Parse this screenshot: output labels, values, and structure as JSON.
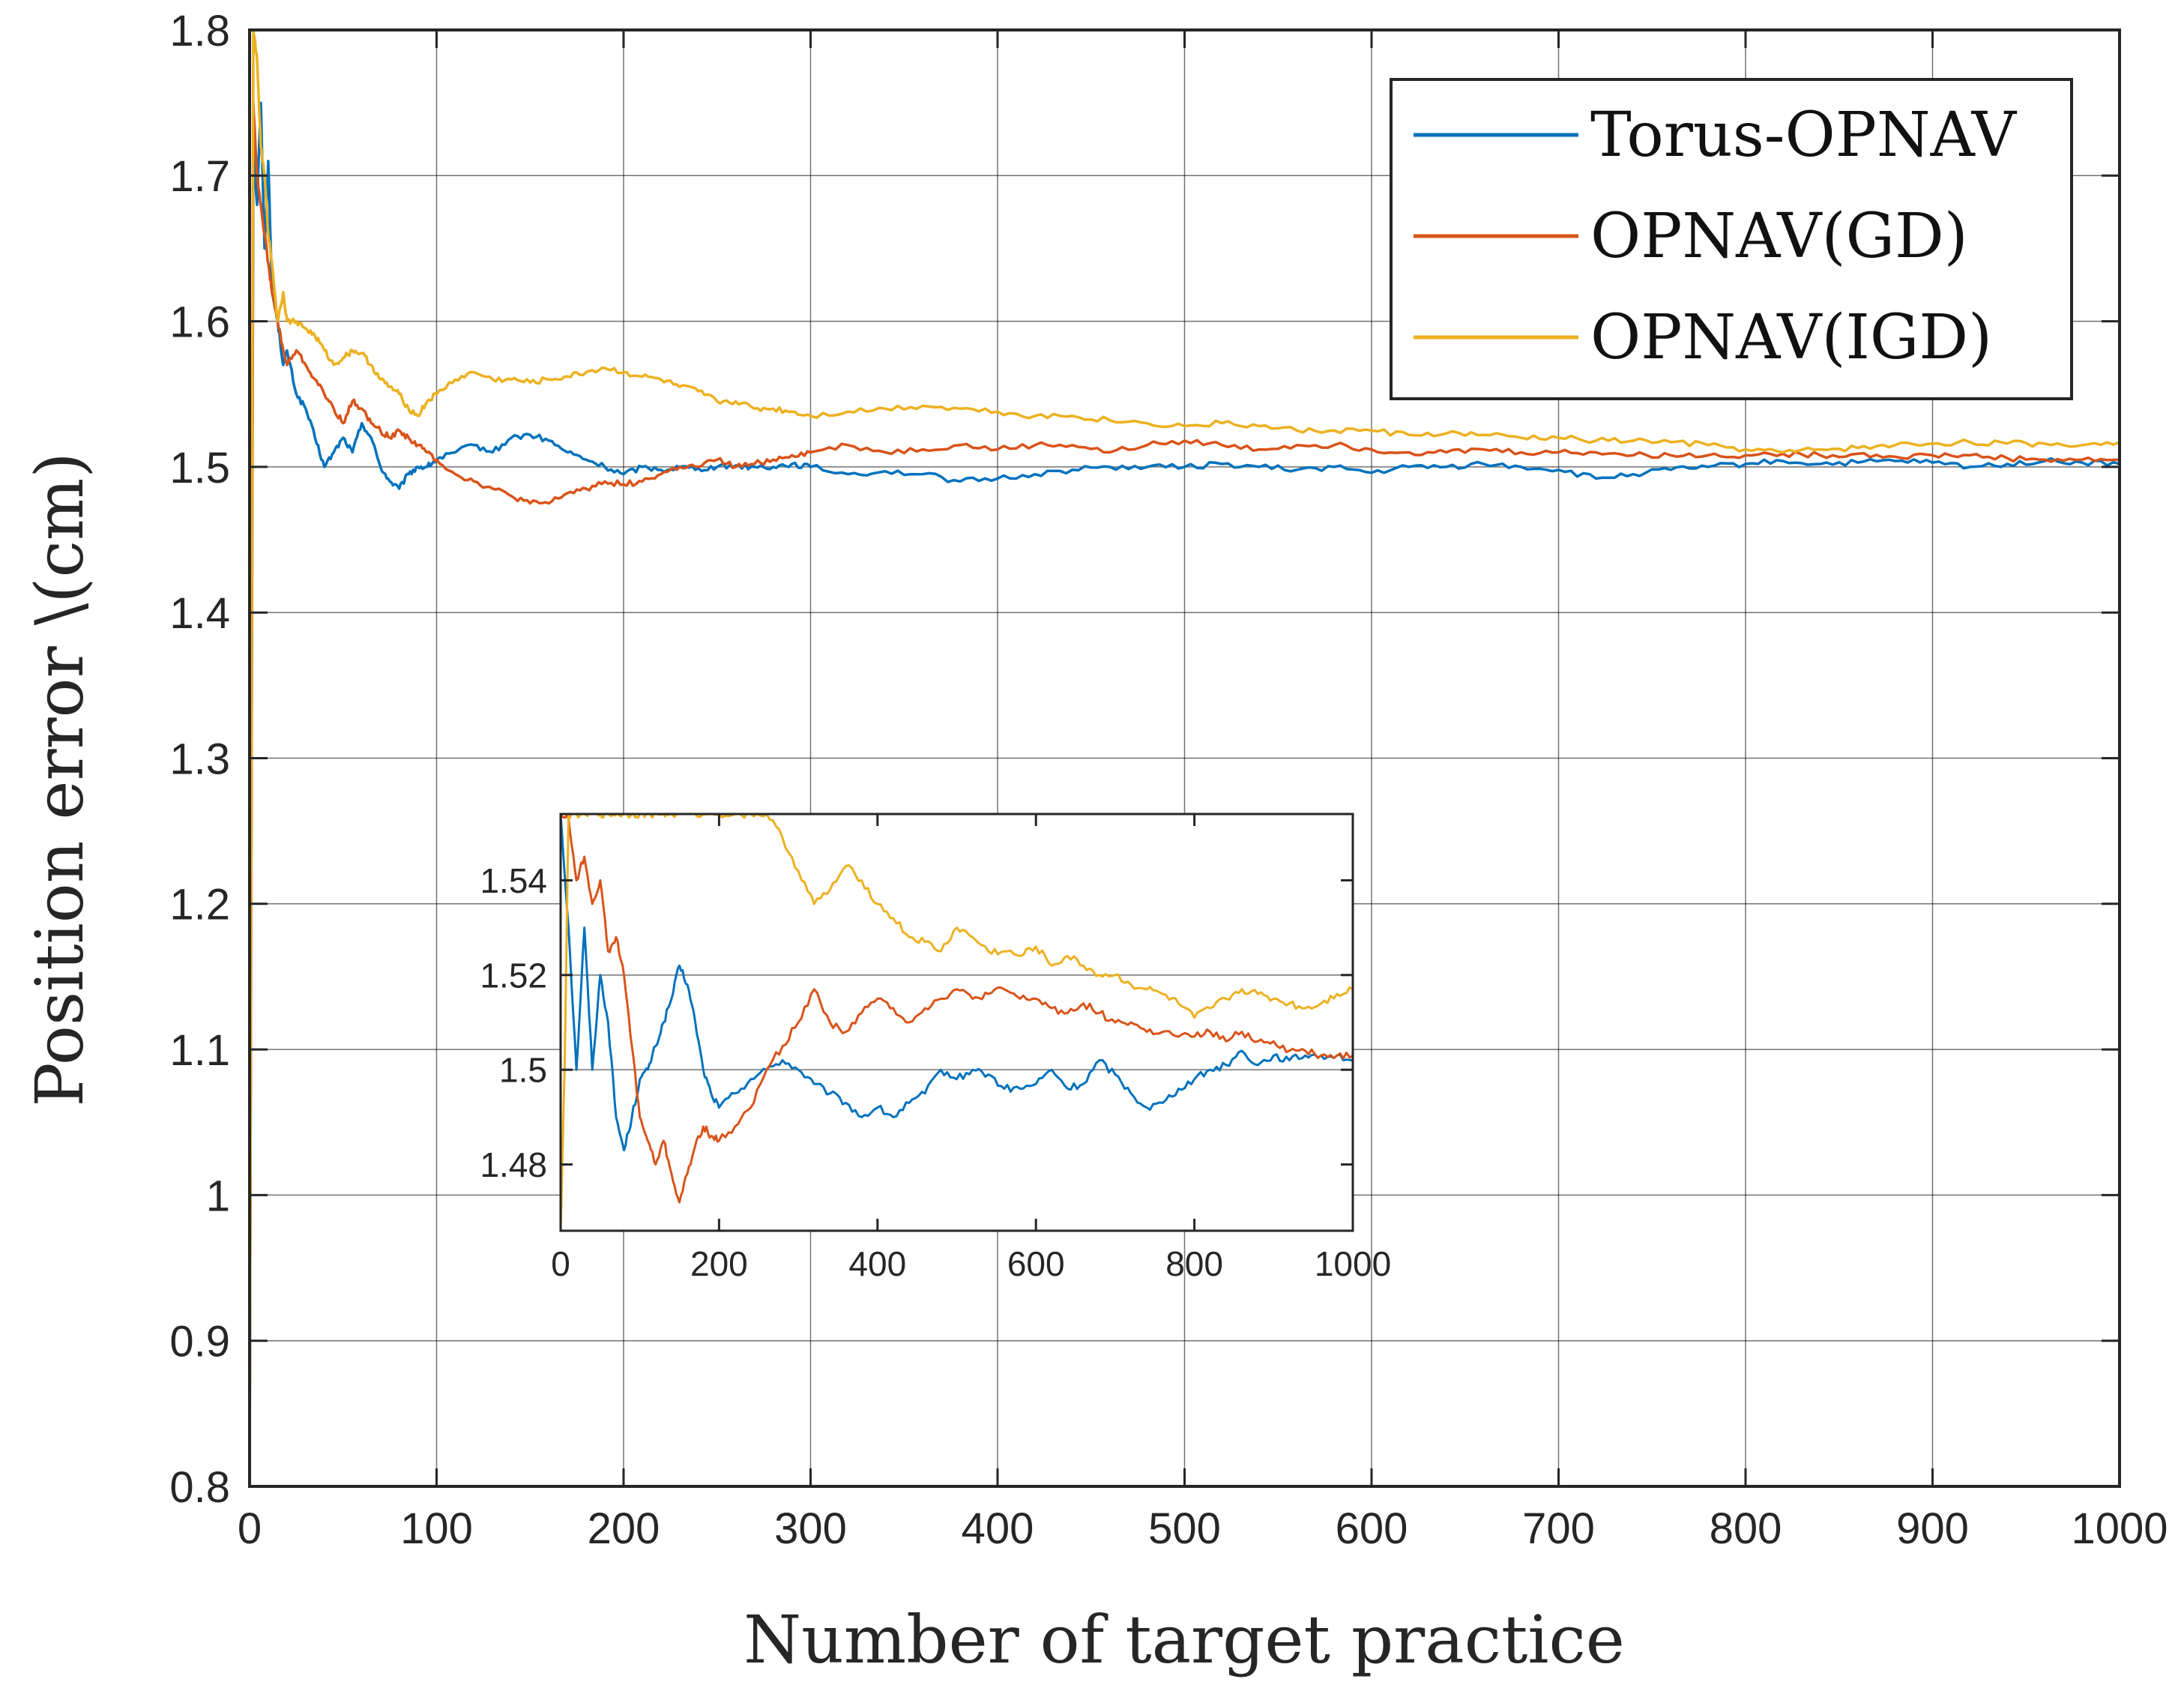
{
  "chart_data": [
    {
      "type": "line",
      "name": "main-chart",
      "xlabel": "Number of target practice",
      "ylabel": "Position error \\(cm)",
      "xlim": [
        0,
        1000
      ],
      "ylim": [
        0.8,
        1.8
      ],
      "xticks": [
        0,
        100,
        200,
        300,
        400,
        500,
        600,
        700,
        800,
        900,
        1000
      ],
      "xtick_labels": [
        "0",
        "100",
        "200",
        "300",
        "400",
        "500",
        "600",
        "700",
        "800",
        "900",
        "1000"
      ],
      "yticks": [
        0.8,
        0.9,
        1.0,
        1.1,
        1.2,
        1.3,
        1.4,
        1.5,
        1.6,
        1.7,
        1.8
      ],
      "ytick_labels": [
        "0.8",
        "0.9",
        "1",
        "1.1",
        "1.2",
        "1.3",
        "1.4",
        "1.5",
        "1.6",
        "1.7",
        "1.8"
      ],
      "legend_position": "top-right",
      "series": [
        {
          "name": "Torus-OPNAV",
          "color": "#0072BD",
          "x": [
            0,
            2,
            4,
            6,
            8,
            10,
            12,
            15,
            18,
            20,
            25,
            30,
            35,
            40,
            45,
            50,
            55,
            60,
            65,
            70,
            75,
            80,
            85,
            90,
            95,
            100,
            110,
            120,
            130,
            140,
            150,
            160,
            170,
            180,
            190,
            200,
            210,
            220,
            230,
            240,
            250,
            260,
            270,
            280,
            290,
            300,
            320,
            340,
            360,
            380,
            400,
            420,
            440,
            460,
            480,
            500,
            520,
            540,
            560,
            580,
            600,
            620,
            640,
            660,
            680,
            700,
            720,
            740,
            760,
            780,
            800,
            820,
            840,
            860,
            880,
            900,
            920,
            940,
            960,
            980,
            1000
          ],
          "y": [
            0.8,
            1.72,
            1.68,
            1.75,
            1.65,
            1.71,
            1.62,
            1.6,
            1.57,
            1.58,
            1.55,
            1.54,
            1.52,
            1.5,
            1.51,
            1.52,
            1.51,
            1.53,
            1.52,
            1.5,
            1.49,
            1.485,
            1.495,
            1.5,
            1.5,
            1.505,
            1.51,
            1.515,
            1.51,
            1.52,
            1.522,
            1.518,
            1.51,
            1.505,
            1.5,
            1.495,
            1.5,
            1.498,
            1.5,
            1.499,
            1.5,
            1.501,
            1.5,
            1.5,
            1.502,
            1.5,
            1.495,
            1.497,
            1.495,
            1.49,
            1.492,
            1.495,
            1.498,
            1.5,
            1.5,
            1.5,
            1.502,
            1.5,
            1.498,
            1.5,
            1.496,
            1.5,
            1.5,
            1.502,
            1.5,
            1.498,
            1.492,
            1.495,
            1.498,
            1.5,
            1.502,
            1.504,
            1.502,
            1.503,
            1.504,
            1.503,
            1.5,
            1.502,
            1.504,
            1.503,
            1.502
          ]
        },
        {
          "name": "OPNAV(GD)",
          "color": "#D95319",
          "x": [
            0,
            2,
            4,
            6,
            8,
            10,
            12,
            15,
            18,
            20,
            25,
            30,
            35,
            40,
            45,
            50,
            55,
            60,
            65,
            70,
            75,
            80,
            85,
            90,
            95,
            100,
            110,
            120,
            130,
            140,
            150,
            160,
            170,
            180,
            190,
            200,
            210,
            220,
            230,
            240,
            250,
            260,
            270,
            280,
            290,
            300,
            320,
            340,
            360,
            380,
            400,
            420,
            440,
            460,
            480,
            500,
            520,
            540,
            560,
            580,
            600,
            620,
            640,
            660,
            680,
            700,
            720,
            740,
            760,
            780,
            800,
            820,
            840,
            860,
            880,
            900,
            920,
            940,
            960,
            980,
            1000
          ],
          "y": [
            0.8,
            1.75,
            1.7,
            1.68,
            1.66,
            1.64,
            1.62,
            1.6,
            1.58,
            1.57,
            1.58,
            1.57,
            1.56,
            1.55,
            1.54,
            1.53,
            1.545,
            1.54,
            1.53,
            1.525,
            1.52,
            1.525,
            1.52,
            1.515,
            1.51,
            1.505,
            1.495,
            1.49,
            1.485,
            1.48,
            1.475,
            1.475,
            1.482,
            1.485,
            1.49,
            1.488,
            1.49,
            1.495,
            1.5,
            1.5,
            1.505,
            1.5,
            1.502,
            1.505,
            1.508,
            1.51,
            1.515,
            1.51,
            1.512,
            1.515,
            1.512,
            1.515,
            1.515,
            1.51,
            1.515,
            1.518,
            1.515,
            1.512,
            1.515,
            1.515,
            1.512,
            1.51,
            1.51,
            1.512,
            1.51,
            1.51,
            1.51,
            1.508,
            1.508,
            1.508,
            1.508,
            1.509,
            1.508,
            1.509,
            1.507,
            1.508,
            1.508,
            1.506,
            1.505,
            1.505,
            1.505
          ]
        },
        {
          "name": "OPNAV(IGD)",
          "color": "#EDB120",
          "x": [
            0,
            2,
            4,
            6,
            8,
            10,
            12,
            15,
            18,
            20,
            25,
            30,
            35,
            40,
            45,
            50,
            55,
            60,
            65,
            70,
            75,
            80,
            85,
            90,
            95,
            100,
            110,
            120,
            130,
            140,
            150,
            160,
            170,
            180,
            190,
            200,
            210,
            220,
            230,
            240,
            250,
            260,
            270,
            280,
            290,
            300,
            320,
            340,
            360,
            380,
            400,
            420,
            440,
            460,
            480,
            500,
            520,
            540,
            560,
            580,
            600,
            620,
            640,
            660,
            680,
            700,
            720,
            740,
            760,
            780,
            800,
            820,
            840,
            860,
            880,
            900,
            920,
            940,
            960,
            980,
            1000
          ],
          "y": [
            0.8,
            1.8,
            1.78,
            1.72,
            1.7,
            1.66,
            1.64,
            1.6,
            1.62,
            1.6,
            1.6,
            1.595,
            1.59,
            1.58,
            1.57,
            1.575,
            1.58,
            1.578,
            1.57,
            1.56,
            1.555,
            1.55,
            1.54,
            1.535,
            1.545,
            1.55,
            1.56,
            1.565,
            1.56,
            1.56,
            1.558,
            1.56,
            1.562,
            1.565,
            1.568,
            1.565,
            1.562,
            1.56,
            1.555,
            1.552,
            1.545,
            1.545,
            1.54,
            1.54,
            1.538,
            1.535,
            1.538,
            1.54,
            1.542,
            1.54,
            1.538,
            1.535,
            1.535,
            1.532,
            1.53,
            1.528,
            1.53,
            1.528,
            1.525,
            1.525,
            1.525,
            1.522,
            1.523,
            1.522,
            1.52,
            1.52,
            1.518,
            1.518,
            1.517,
            1.515,
            1.512,
            1.51,
            1.512,
            1.513,
            1.515,
            1.516,
            1.517,
            1.516,
            1.516,
            1.515,
            1.517
          ]
        }
      ]
    },
    {
      "type": "line",
      "name": "inset-chart",
      "xlim": [
        0,
        1000
      ],
      "ylim": [
        1.466,
        1.554
      ],
      "xticks": [
        0,
        200,
        400,
        600,
        800,
        1000
      ],
      "xtick_labels": [
        "0",
        "200",
        "400",
        "600",
        "800",
        "1000"
      ],
      "yticks": [
        1.48,
        1.5,
        1.52,
        1.54
      ],
      "ytick_labels": [
        "1.48",
        "1.5",
        "1.52",
        "1.54"
      ],
      "series": [
        {
          "name": "Torus-OPNAV",
          "color": "#0072BD",
          "x": [
            0,
            10,
            20,
            30,
            40,
            50,
            60,
            70,
            80,
            90,
            100,
            110,
            120,
            130,
            140,
            150,
            160,
            170,
            180,
            190,
            200,
            220,
            240,
            260,
            280,
            300,
            320,
            340,
            360,
            380,
            400,
            420,
            440,
            460,
            480,
            500,
            520,
            540,
            560,
            580,
            600,
            620,
            640,
            660,
            680,
            700,
            720,
            740,
            760,
            780,
            800,
            820,
            840,
            860,
            880,
            900,
            920,
            940,
            960,
            980,
            1000
          ],
          "y": [
            1.554,
            1.53,
            1.5,
            1.53,
            1.5,
            1.52,
            1.51,
            1.49,
            1.483,
            1.49,
            1.498,
            1.5,
            1.505,
            1.51,
            1.515,
            1.522,
            1.518,
            1.51,
            1.5,
            1.495,
            1.492,
            1.495,
            1.498,
            1.5,
            1.502,
            1.5,
            1.497,
            1.495,
            1.493,
            1.49,
            1.492,
            1.49,
            1.493,
            1.495,
            1.5,
            1.498,
            1.5,
            1.499,
            1.496,
            1.496,
            1.497,
            1.5,
            1.496,
            1.497,
            1.502,
            1.499,
            1.495,
            1.492,
            1.493,
            1.496,
            1.498,
            1.5,
            1.501,
            1.504,
            1.501,
            1.503,
            1.502,
            1.503,
            1.503,
            1.503,
            1.502
          ]
        },
        {
          "name": "OPNAV(GD)",
          "color": "#D95319",
          "x": [
            0,
            10,
            20,
            30,
            40,
            50,
            60,
            70,
            80,
            90,
            100,
            110,
            120,
            130,
            140,
            150,
            160,
            170,
            180,
            190,
            200,
            220,
            240,
            260,
            280,
            300,
            320,
            340,
            360,
            380,
            400,
            420,
            440,
            460,
            480,
            500,
            520,
            540,
            560,
            580,
            600,
            620,
            640,
            660,
            680,
            700,
            720,
            740,
            760,
            780,
            800,
            820,
            840,
            860,
            880,
            900,
            920,
            940,
            960,
            980,
            1000
          ],
          "y": [
            1.554,
            1.553,
            1.54,
            1.545,
            1.535,
            1.54,
            1.525,
            1.528,
            1.52,
            1.505,
            1.49,
            1.485,
            1.48,
            1.485,
            1.478,
            1.472,
            1.478,
            1.484,
            1.488,
            1.486,
            1.485,
            1.488,
            1.492,
            1.5,
            1.505,
            1.51,
            1.517,
            1.51,
            1.508,
            1.512,
            1.515,
            1.513,
            1.51,
            1.513,
            1.515,
            1.517,
            1.515,
            1.516,
            1.517,
            1.515,
            1.515,
            1.513,
            1.512,
            1.514,
            1.512,
            1.51,
            1.51,
            1.508,
            1.508,
            1.507,
            1.507,
            1.508,
            1.506,
            1.508,
            1.506,
            1.506,
            1.504,
            1.504,
            1.503,
            1.503,
            1.503
          ]
        },
        {
          "name": "OPNAV(IGD)",
          "color": "#EDB120",
          "x": [
            0,
            5,
            10,
            20,
            30,
            40,
            50,
            60,
            70,
            80,
            90,
            100,
            110,
            120,
            130,
            140,
            160,
            180,
            200,
            220,
            240,
            260,
            280,
            300,
            320,
            340,
            360,
            380,
            400,
            420,
            440,
            460,
            480,
            500,
            520,
            540,
            560,
            580,
            600,
            620,
            640,
            660,
            680,
            700,
            720,
            740,
            760,
            780,
            800,
            820,
            840,
            860,
            880,
            900,
            920,
            940,
            960,
            980,
            1000
          ],
          "y": [
            1.466,
            1.5,
            1.554,
            1.554,
            1.554,
            1.554,
            1.554,
            1.554,
            1.554,
            1.554,
            1.554,
            1.554,
            1.554,
            1.554,
            1.554,
            1.554,
            1.554,
            1.554,
            1.554,
            1.554,
            1.554,
            1.554,
            1.549,
            1.542,
            1.535,
            1.538,
            1.543,
            1.54,
            1.535,
            1.532,
            1.528,
            1.527,
            1.525,
            1.53,
            1.528,
            1.525,
            1.525,
            1.524,
            1.526,
            1.522,
            1.524,
            1.522,
            1.52,
            1.52,
            1.518,
            1.517,
            1.516,
            1.514,
            1.511,
            1.513,
            1.515,
            1.517,
            1.516,
            1.515,
            1.514,
            1.513,
            1.514,
            1.516,
            1.517
          ]
        }
      ]
    }
  ]
}
